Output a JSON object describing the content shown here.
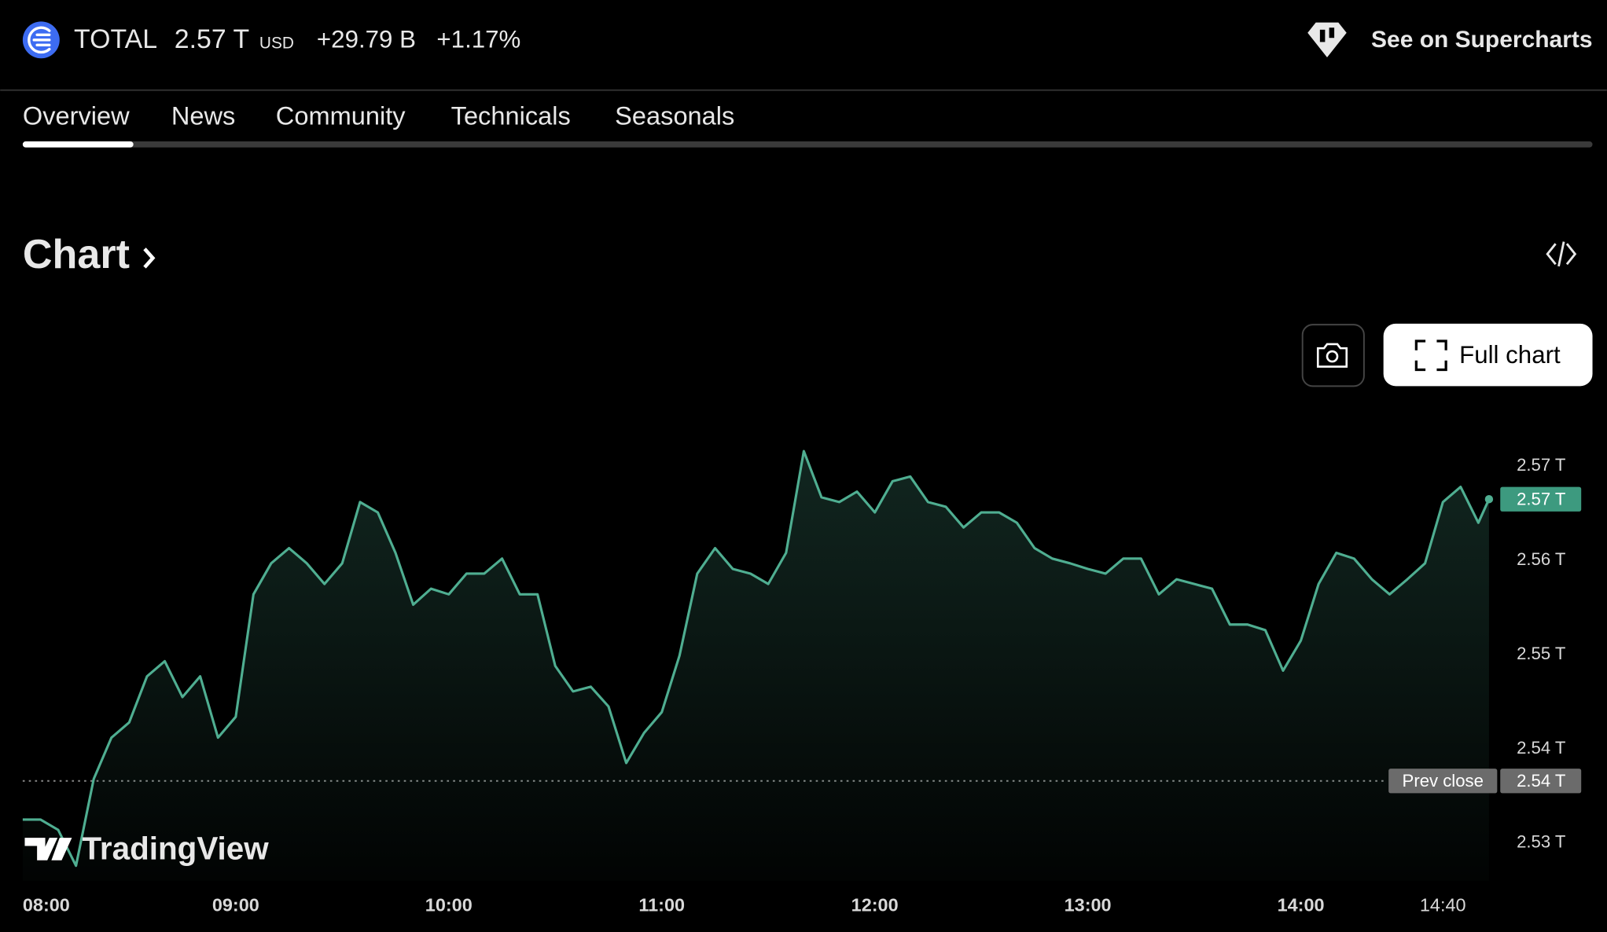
{
  "header": {
    "symbol": "TOTAL",
    "price": "2.57 T",
    "currency": "USD",
    "change": "+29.79 B",
    "change_percent": "+1.17%",
    "link": "See on Supercharts"
  },
  "tabs": [
    "Overview",
    "News",
    "Community",
    "Technicals",
    "Seasonals"
  ],
  "section_title": "Chart",
  "button": "Full chart",
  "watermark": "TradingView",
  "chart_data": {
    "type": "line",
    "color": "#4fae91",
    "x": [
      "08:00",
      "08:05",
      "08:10",
      "08:15",
      "08:20",
      "08:25",
      "08:30",
      "08:35",
      "08:40",
      "08:45",
      "08:50",
      "08:55",
      "09:00",
      "09:05",
      "09:10",
      "09:15",
      "09:20",
      "09:25",
      "09:30",
      "09:35",
      "09:40",
      "09:45",
      "09:50",
      "09:55",
      "10:00",
      "10:05",
      "10:10",
      "10:15",
      "10:20",
      "10:25",
      "10:30",
      "10:35",
      "10:40",
      "10:45",
      "10:50",
      "10:55",
      "11:00",
      "11:05",
      "11:10",
      "11:15",
      "11:20",
      "11:25",
      "11:30",
      "11:35",
      "11:40",
      "11:45",
      "11:50",
      "11:55",
      "12:00",
      "12:05",
      "12:10",
      "12:15",
      "12:20",
      "12:25",
      "12:30",
      "12:35",
      "12:40",
      "12:45",
      "12:50",
      "12:55",
      "13:00",
      "13:05",
      "13:10",
      "13:15",
      "13:20",
      "13:25",
      "13:30",
      "13:35",
      "13:40",
      "13:45",
      "13:50",
      "13:55",
      "14:00",
      "14:05",
      "14:10",
      "14:15",
      "14:20",
      "14:25",
      "14:30",
      "14:35",
      "14:40",
      "14:45",
      "14:50",
      "14:53"
    ],
    "values": [
      2.5325,
      2.5325,
      2.5314,
      2.5276,
      2.5368,
      2.5412,
      2.5428,
      2.5477,
      2.5493,
      2.5455,
      2.5477,
      2.5412,
      2.5434,
      2.5564,
      2.5597,
      2.5613,
      2.5597,
      2.5575,
      2.5597,
      2.5662,
      2.5651,
      2.5608,
      2.5553,
      2.557,
      2.5564,
      2.5586,
      2.5586,
      2.5602,
      2.5564,
      2.5564,
      2.5488,
      2.5461,
      2.5466,
      2.5445,
      2.5385,
      2.5417,
      2.5439,
      2.5499,
      2.5586,
      2.5613,
      2.5591,
      2.5586,
      2.5575,
      2.5608,
      2.5716,
      2.5667,
      2.5662,
      2.5673,
      2.5651,
      2.5684,
      2.5689,
      2.5662,
      2.5657,
      2.5635,
      2.5651,
      2.5651,
      2.564,
      2.5613,
      2.5602,
      2.5597,
      2.5591,
      2.5586,
      2.5602,
      2.5602,
      2.5564,
      2.558,
      2.5575,
      2.557,
      2.5532,
      2.5532,
      2.5526,
      2.5483,
      2.5515,
      2.5575,
      2.5608,
      2.5602,
      2.558,
      2.5564,
      2.558,
      2.5597,
      2.5662,
      2.5678,
      2.564,
      2.5665
    ],
    "value_labels": [
      null,
      null,
      null,
      null,
      null,
      null,
      null,
      null,
      null,
      null,
      null,
      null,
      null,
      null,
      null,
      null,
      null,
      null,
      null,
      null,
      null,
      null,
      null,
      null,
      null,
      null,
      null,
      null,
      null,
      null,
      null,
      null,
      null,
      null,
      null,
      null,
      null,
      null,
      null,
      null,
      null,
      null,
      null,
      null,
      null,
      null,
      null,
      null,
      null,
      null,
      null,
      null,
      null,
      null,
      null,
      null,
      null,
      null,
      null,
      null,
      null,
      null,
      null,
      null,
      null,
      null,
      null,
      null,
      null,
      null,
      null,
      null,
      null,
      null,
      null,
      null,
      null,
      null,
      null,
      null,
      null,
      null,
      null,
      "2.57 T"
    ],
    "xlim": [
      "08:00",
      "14:53"
    ],
    "xticks": [
      "08:00",
      "09:00",
      "10:00",
      "11:00",
      "12:00",
      "13:00",
      "14:00",
      "14:40"
    ],
    "ylim": [
      2.526,
      2.576
    ],
    "yticks": [
      {
        "value": 2.53,
        "label": "2.53 T"
      },
      {
        "value": 2.54,
        "label": "2.54 T"
      },
      {
        "value": 2.55,
        "label": "2.55 T"
      },
      {
        "value": 2.56,
        "label": "2.56 T"
      },
      {
        "value": 2.57,
        "label": "2.57 T"
      }
    ],
    "prev_close": {
      "label": "Prev close",
      "value": 2.5366,
      "value_label": "2.54 T"
    }
  }
}
